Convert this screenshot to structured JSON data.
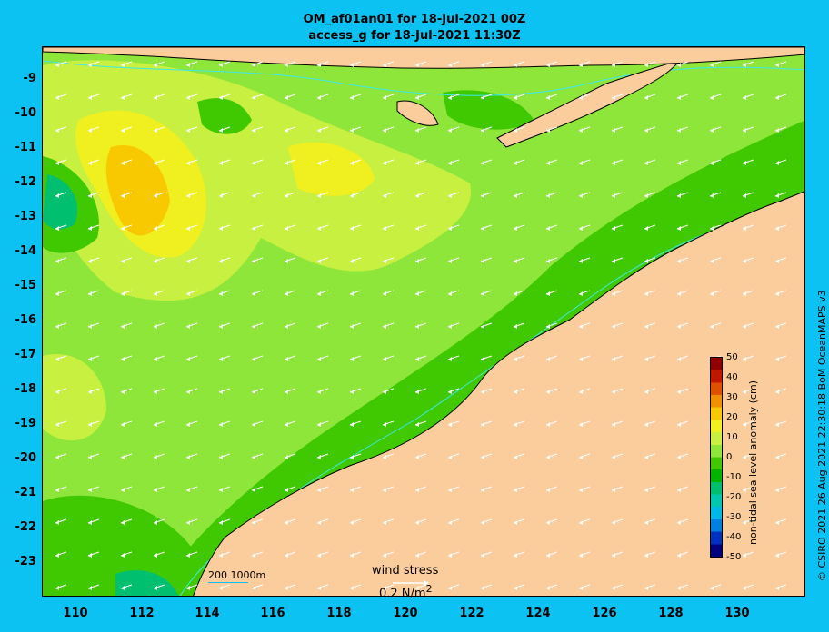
{
  "header": {
    "title_line1": "OM_af01an01 for 18-Jul-2021 00Z",
    "title_line2": "access_g for 18-Jul-2021 11:30Z"
  },
  "axes": {
    "y_labels": [
      "-9",
      "-10",
      "-11",
      "-12",
      "-13",
      "-14",
      "-15",
      "-16",
      "-17",
      "-18",
      "-19",
      "-20",
      "-21",
      "-22",
      "-23"
    ],
    "x_labels": [
      "110",
      "112",
      "114",
      "116",
      "118",
      "120",
      "122",
      "124",
      "126",
      "128",
      "130"
    ]
  },
  "colorbar": {
    "label": "non-tidal sea level anomaly (cm)",
    "ticks": [
      "50",
      "40",
      "30",
      "20",
      "10",
      "0",
      "-10",
      "-20",
      "-30",
      "-40",
      "-50"
    ],
    "colors": [
      "#00007f",
      "#0030c0",
      "#0080e0",
      "#00b8e8",
      "#00c8b0",
      "#00c070",
      "#00b400",
      "#40c800",
      "#8ee63a",
      "#c8f040",
      "#f0f020",
      "#f8c800",
      "#f09000",
      "#e05000",
      "#c01800",
      "#900000"
    ]
  },
  "legend": {
    "scale_label": "200  1000m",
    "wind_title": "wind stress",
    "wind_value": "0.2 N/m",
    "wind_value_sup": "2"
  },
  "credit": "© CSIRO 2021  26 Aug 2021 22:30:18 BoM OceanMAPS v3",
  "map": {
    "land_color": "#fbcc9c",
    "coast_color": "#000000",
    "contour_color": "#3de8e8",
    "arrow_color": "#ffffff"
  }
}
